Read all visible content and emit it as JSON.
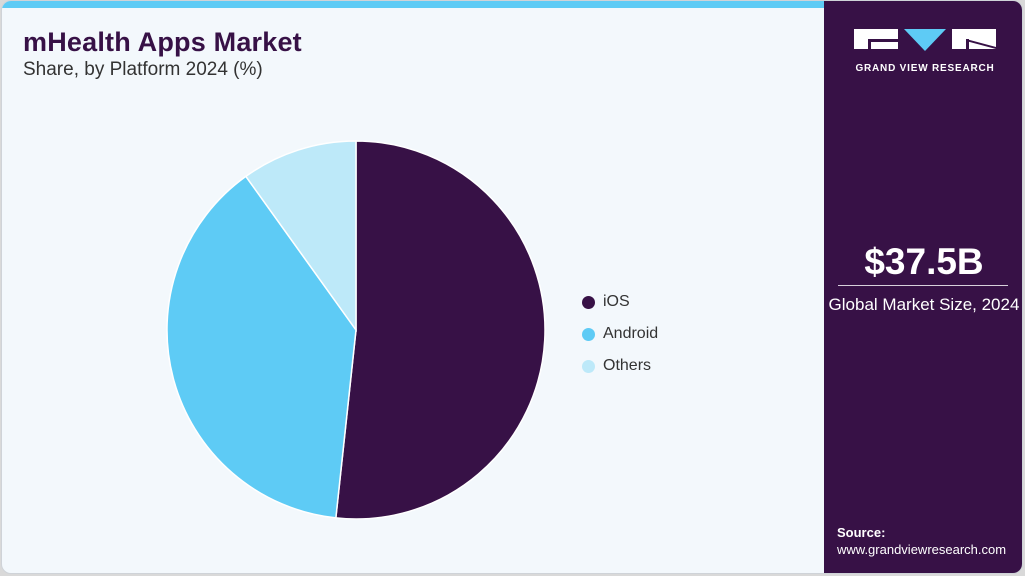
{
  "header": {
    "title": "mHealth Apps Market",
    "subtitle": "Share, by Platform 2024 (%)"
  },
  "legend": [
    {
      "label": "iOS",
      "color": "#371146"
    },
    {
      "label": "Android",
      "color": "#5ecbf5"
    },
    {
      "label": "Others",
      "color": "#bde9f9"
    }
  ],
  "sidebar": {
    "brand": "GRAND VIEW RESEARCH",
    "market_size": "$37.5B",
    "market_size_label": "Global Market Size, 2024",
    "source_label": "Source:",
    "source_url": "www.grandviewresearch.com"
  },
  "colors": {
    "accent_bar": "#5ecbf5",
    "sidebar_bg": "#371146",
    "background": "#f3f8fc"
  },
  "chart_data": {
    "type": "pie",
    "title": "mHealth Apps Market",
    "subtitle": "Share, by Platform 2024 (%)",
    "categories": [
      "iOS",
      "Android",
      "Others"
    ],
    "values": [
      51.7,
      38.4,
      9.9
    ],
    "colors": [
      "#371146",
      "#5ecbf5",
      "#bde9f9"
    ],
    "start_angle": "12 o'clock, clockwise",
    "legend_position": "right"
  }
}
